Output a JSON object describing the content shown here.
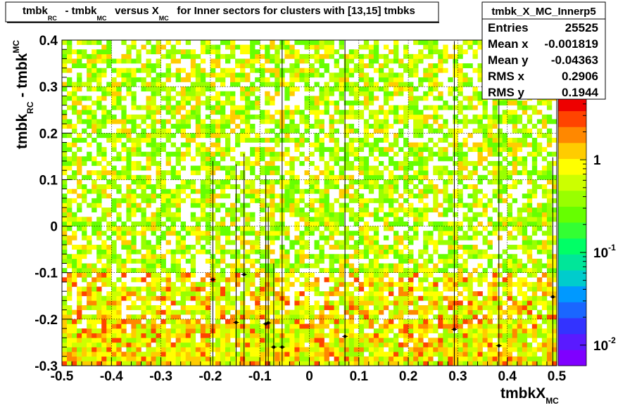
{
  "chart_data": {
    "type": "heatmap",
    "title": {
      "parts": [
        {
          "t": "tmbk",
          "sub": "RC"
        },
        {
          "t": " - tmbk",
          "sub": "MC"
        },
        {
          "t": " versus X",
          "sub": "MC"
        },
        {
          "t": " for Inner sectors for clusters with [13,15] tmbks"
        }
      ]
    },
    "xlabel": {
      "main": "tmbkX",
      "sub": "MC"
    },
    "ylabel": {
      "main1": "tmbk",
      "sub1": "RC",
      "main2": " - tmbk",
      "sub2": "MC"
    },
    "xlim": [
      -0.5,
      0.5
    ],
    "ylim": [
      -0.3,
      0.4
    ],
    "x_ticks": [
      "-0.5",
      "-0.4",
      "-0.3",
      "-0.2",
      "-0.1",
      "0",
      "0.1",
      "0.2",
      "0.3",
      "0.4",
      "0.5"
    ],
    "y_ticks": [
      "-0.3",
      "-0.2",
      "-0.1",
      "0",
      "0.1",
      "0.2",
      "0.3",
      "0.4"
    ],
    "grid": true,
    "z_scale": "log",
    "z_range": [
      0.006,
      5
    ],
    "z_ticks": [
      {
        "base": "1",
        "exp": ""
      },
      {
        "base": "10",
        "exp": "-1"
      },
      {
        "base": "10",
        "exp": "-2"
      }
    ],
    "palette": [
      "#7f00ff",
      "#5a1aff",
      "#3333ff",
      "#1a66ff",
      "#0099ff",
      "#00cccc",
      "#00e699",
      "#00ff66",
      "#33ff33",
      "#66ff00",
      "#99ff00",
      "#ccff00",
      "#ffff00",
      "#ffcc00",
      "#ff8800",
      "#ff4400",
      "#ee0000"
    ],
    "stats": {
      "name": "tmbk_X_MC_Innerp5",
      "rows": [
        {
          "label": "Entries",
          "value": "25525"
        },
        {
          "label": "Mean x",
          "value": "-0.001819"
        },
        {
          "label": "Mean y",
          "value": "-0.04363"
        },
        {
          "label": "RMS x",
          "value": "0.2906"
        },
        {
          "label": "RMS y",
          "value": "0.1944"
        }
      ]
    },
    "profile_points": [
      {
        "x": -0.195,
        "y": -0.115,
        "ey_low": 0.185,
        "ey_high": 0.255
      },
      {
        "x": -0.148,
        "y": -0.207,
        "ey_low": 0.093,
        "ey_high": 0.34
      },
      {
        "x": -0.132,
        "y": -0.104,
        "ey_low": 0.196,
        "ey_high": 0.26
      },
      {
        "x": -0.088,
        "y": -0.21,
        "ey_low": 0.09,
        "ey_high": 0.32
      },
      {
        "x": -0.083,
        "y": -0.208,
        "ey_low": 0.092,
        "ey_high": 0.25
      },
      {
        "x": -0.072,
        "y": -0.26,
        "ey_low": 0.04,
        "ey_high": 0.18
      },
      {
        "x": -0.055,
        "y": -0.26,
        "ey_low": 0.04,
        "ey_high": 0.66
      },
      {
        "x": 0.072,
        "y": -0.237,
        "ey_low": 0.063,
        "ey_high": 0.64
      },
      {
        "x": 0.293,
        "y": -0.222,
        "ey_low": 0.078,
        "ey_high": 0.62
      },
      {
        "x": 0.383,
        "y": -0.257,
        "ey_low": 0.043,
        "ey_high": 0.6
      },
      {
        "x": 0.492,
        "y": -0.152,
        "ey_low": 0.148,
        "ey_high": 0.3
      }
    ]
  }
}
